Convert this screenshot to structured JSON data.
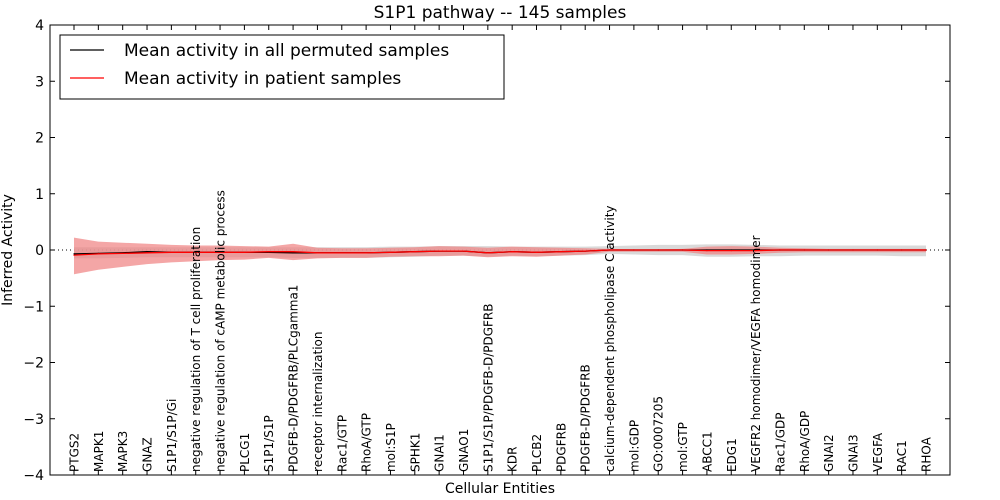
{
  "chart_data": {
    "type": "line",
    "title": "S1P1 pathway -- 145 samples",
    "xlabel": "Cellular Entities",
    "ylabel": "Inferred Activity",
    "ylim": [
      -4,
      4
    ],
    "yticks": [
      4,
      3,
      2,
      1,
      0,
      -1,
      -2,
      -3,
      -4
    ],
    "ytick_labels": [
      "4",
      "3",
      "2",
      "1",
      "0",
      "−1",
      "−2",
      "−3",
      "−4"
    ],
    "legend_position": "top-left",
    "categories": [
      "PTGS2",
      "MAPK1",
      "MAPK3",
      "GNAZ",
      "S1P1/S1P/Gi",
      "negative regulation of T cell proliferation",
      "negative regulation of cAMP metabolic process",
      "PLCG1",
      "S1P1/S1P",
      "PDGFB-D/PDGFRB/PLCgamma1",
      "receptor internalization",
      "Rac1/GTP",
      "RhoA/GTP",
      "mol:S1P",
      "SPHK1",
      "GNAI1",
      "GNAO1",
      "S1P1/S1P/PDGFB-D/PDGFRB",
      "KDR",
      "PLCB2",
      "PDGFRB",
      "PDGFB-D/PDGFRB",
      "calcium-dependent phospholipase C activity",
      "mol:GDP",
      "GO:0007205",
      "mol:GTP",
      "ABCC1",
      "EDG1",
      "VEGFR2 homodimer/VEGFA homodimer",
      "Rac1/GDP",
      "RhoA/GDP",
      "GNAI2",
      "GNAI3",
      "VEGFA",
      "RAC1",
      "RHOA"
    ],
    "series": [
      {
        "name": "Mean activity in all permuted samples",
        "color": "#000000",
        "band_color": "#d0d0d0",
        "values": [
          -0.07,
          -0.06,
          -0.05,
          -0.03,
          -0.04,
          -0.04,
          -0.04,
          -0.04,
          -0.04,
          -0.05,
          -0.05,
          -0.05,
          -0.05,
          -0.04,
          -0.03,
          -0.02,
          -0.02,
          -0.05,
          -0.03,
          -0.04,
          -0.03,
          -0.02,
          0.0,
          0.0,
          0.0,
          0.0,
          0.0,
          0.0,
          0.0,
          0.0,
          0.0,
          0.0,
          0.0,
          0.0,
          0.0,
          0.0
        ],
        "upper": [
          0.05,
          0.05,
          0.05,
          0.05,
          0.05,
          0.05,
          0.05,
          0.05,
          0.05,
          0.05,
          0.05,
          0.05,
          0.05,
          0.06,
          0.06,
          0.07,
          0.07,
          0.07,
          0.06,
          0.06,
          0.06,
          0.06,
          0.07,
          0.08,
          0.09,
          0.09,
          0.1,
          0.1,
          0.09,
          0.08,
          0.08,
          0.08,
          0.08,
          0.08,
          0.08,
          0.08
        ],
        "lower": [
          -0.15,
          -0.15,
          -0.14,
          -0.13,
          -0.13,
          -0.13,
          -0.13,
          -0.13,
          -0.13,
          -0.14,
          -0.14,
          -0.14,
          -0.14,
          -0.13,
          -0.12,
          -0.1,
          -0.1,
          -0.12,
          -0.1,
          -0.11,
          -0.1,
          -0.09,
          -0.07,
          -0.08,
          -0.09,
          -0.09,
          -0.12,
          -0.12,
          -0.11,
          -0.11,
          -0.1,
          -0.1,
          -0.1,
          -0.1,
          -0.11,
          -0.11
        ]
      },
      {
        "name": "Mean activity in patient samples",
        "color": "#ff0000",
        "band_color": "#f08080",
        "values": [
          -0.09,
          -0.07,
          -0.06,
          -0.05,
          -0.04,
          -0.04,
          -0.04,
          -0.04,
          -0.03,
          -0.03,
          -0.05,
          -0.05,
          -0.05,
          -0.04,
          -0.03,
          -0.02,
          -0.02,
          -0.05,
          -0.03,
          -0.04,
          -0.03,
          -0.02,
          0.0,
          0.0,
          0.0,
          0.0,
          -0.01,
          -0.01,
          -0.01,
          0.0,
          0.0,
          0.0,
          0.0,
          0.0,
          0.0,
          0.0
        ],
        "upper": [
          0.22,
          0.15,
          0.13,
          0.11,
          0.09,
          0.08,
          0.08,
          0.07,
          0.06,
          0.11,
          0.04,
          0.03,
          0.03,
          0.04,
          0.05,
          0.07,
          0.06,
          0.04,
          0.06,
          0.05,
          0.04,
          0.03,
          0.02,
          0.01,
          0.01,
          0.02,
          0.06,
          0.07,
          0.06,
          0.04,
          0.03,
          0.02,
          0.02,
          0.02,
          0.02,
          0.02
        ],
        "lower": [
          -0.43,
          -0.35,
          -0.3,
          -0.25,
          -0.22,
          -0.2,
          -0.18,
          -0.17,
          -0.14,
          -0.18,
          -0.15,
          -0.14,
          -0.14,
          -0.12,
          -0.11,
          -0.11,
          -0.1,
          -0.13,
          -0.11,
          -0.12,
          -0.1,
          -0.08,
          -0.03,
          -0.03,
          -0.03,
          -0.03,
          -0.08,
          -0.08,
          -0.07,
          -0.05,
          -0.04,
          -0.04,
          -0.04,
          -0.04,
          -0.04,
          -0.04
        ]
      }
    ]
  }
}
